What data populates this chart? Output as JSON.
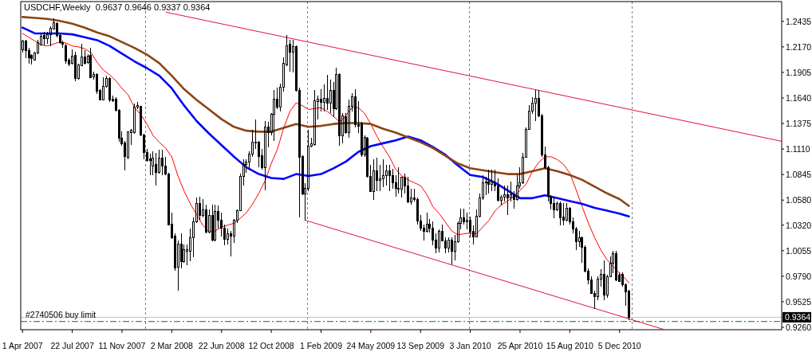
{
  "chart_data": {
    "type": "candlestick",
    "title": "USDCHF,Weekly  0.9637 0.9646 0.9337 0.9364",
    "x": [
      "2007-04-01",
      "2007-04-08",
      "2007-04-15",
      "2007-04-22",
      "2007-04-29",
      "2007-05-06",
      "2007-05-13",
      "2007-05-20",
      "2007-05-27",
      "2007-06-03",
      "2007-06-10",
      "2007-06-17",
      "2007-06-24",
      "2007-07-01",
      "2007-07-08",
      "2007-07-15",
      "2007-07-22",
      "2007-07-29",
      "2007-08-05",
      "2007-08-12",
      "2007-08-19",
      "2007-08-26",
      "2007-09-02",
      "2007-09-09",
      "2007-09-16",
      "2007-09-23",
      "2007-09-30",
      "2007-10-07",
      "2007-10-14",
      "2007-10-21",
      "2007-10-28",
      "2007-11-04",
      "2007-11-11",
      "2007-11-18",
      "2007-11-25",
      "2007-12-02",
      "2007-12-09",
      "2007-12-16",
      "2007-12-23",
      "2007-12-30",
      "2008-01-06",
      "2008-01-13",
      "2008-01-20",
      "2008-01-27",
      "2008-02-03",
      "2008-02-10",
      "2008-02-17",
      "2008-02-24",
      "2008-03-02",
      "2008-03-09",
      "2008-03-16",
      "2008-03-23",
      "2008-03-30",
      "2008-04-06",
      "2008-04-13",
      "2008-04-20",
      "2008-04-27",
      "2008-05-04",
      "2008-05-11",
      "2008-05-18",
      "2008-05-25",
      "2008-06-01",
      "2008-06-08",
      "2008-06-15",
      "2008-06-22",
      "2008-06-29",
      "2008-07-06",
      "2008-07-13",
      "2008-07-20",
      "2008-07-27",
      "2008-08-03",
      "2008-08-10",
      "2008-08-17",
      "2008-08-24",
      "2008-08-31",
      "2008-09-07",
      "2008-09-14",
      "2008-09-21",
      "2008-09-28",
      "2008-10-05",
      "2008-10-12",
      "2008-10-19",
      "2008-10-26",
      "2008-11-02",
      "2008-11-09",
      "2008-11-16",
      "2008-11-23",
      "2008-11-30",
      "2008-12-07",
      "2008-12-14",
      "2008-12-21",
      "2008-12-28",
      "2009-01-04",
      "2009-01-11",
      "2009-01-18",
      "2009-01-25",
      "2009-02-01",
      "2009-02-08",
      "2009-02-15",
      "2009-02-22",
      "2009-03-01",
      "2009-03-08",
      "2009-03-15",
      "2009-03-22",
      "2009-03-29",
      "2009-04-05",
      "2009-04-12",
      "2009-04-19",
      "2009-04-26",
      "2009-05-03",
      "2009-05-10",
      "2009-05-17",
      "2009-05-24",
      "2009-05-31",
      "2009-06-07",
      "2009-06-14",
      "2009-06-21",
      "2009-06-28",
      "2009-07-05",
      "2009-07-12",
      "2009-07-19",
      "2009-07-26",
      "2009-08-02",
      "2009-08-09",
      "2009-08-16",
      "2009-08-23",
      "2009-08-30",
      "2009-09-06",
      "2009-09-13",
      "2009-09-20",
      "2009-09-27",
      "2009-10-04",
      "2009-10-11",
      "2009-10-18",
      "2009-10-25",
      "2009-11-01",
      "2009-11-08",
      "2009-11-15",
      "2009-11-22",
      "2009-11-29",
      "2009-12-06",
      "2009-12-13",
      "2009-12-20",
      "2009-12-27",
      "2010-01-03",
      "2010-01-10",
      "2010-01-17",
      "2010-01-24",
      "2010-01-31",
      "2010-02-07",
      "2010-02-14",
      "2010-02-21",
      "2010-02-28",
      "2010-03-07",
      "2010-03-14",
      "2010-03-21",
      "2010-03-28",
      "2010-04-04",
      "2010-04-11",
      "2010-04-18",
      "2010-04-25",
      "2010-05-02",
      "2010-05-09",
      "2010-05-16",
      "2010-05-23",
      "2010-05-30",
      "2010-06-06",
      "2010-06-13",
      "2010-06-20",
      "2010-06-27",
      "2010-07-04",
      "2010-07-11",
      "2010-07-18",
      "2010-07-25",
      "2010-08-01",
      "2010-08-08",
      "2010-08-15",
      "2010-08-22",
      "2010-08-29",
      "2010-09-05",
      "2010-09-12",
      "2010-09-19",
      "2010-09-26",
      "2010-10-03",
      "2010-10-10",
      "2010-10-17",
      "2010-10-24",
      "2010-10-31",
      "2010-11-07",
      "2010-11-14",
      "2010-11-21",
      "2010-11-28",
      "2010-12-05",
      "2010-12-12",
      "2010-12-19",
      "2010-12-26"
    ],
    "ohlc": [
      [
        1.214,
        1.2244,
        1.2107,
        1.2231
      ],
      [
        1.2231,
        1.2244,
        1.2051,
        1.2129
      ],
      [
        1.2129,
        1.2162,
        1.1996,
        1.2057
      ],
      [
        1.2079,
        1.2093,
        1.1983,
        1.2046
      ],
      [
        1.2035,
        1.212,
        1.2029,
        1.2107
      ],
      [
        1.2107,
        1.2244,
        1.2093,
        1.2217
      ],
      [
        1.2189,
        1.2313,
        1.2184,
        1.2278
      ],
      [
        1.2286,
        1.2327,
        1.2189,
        1.2258
      ],
      [
        1.2253,
        1.2327,
        1.2203,
        1.23
      ],
      [
        1.2294,
        1.2382,
        1.2176,
        1.236
      ],
      [
        1.2355,
        1.2465,
        1.2349,
        1.2418
      ],
      [
        1.2415,
        1.2424,
        1.2272,
        1.2286
      ],
      [
        1.2286,
        1.23,
        1.2203,
        1.2211
      ],
      [
        1.2217,
        1.2231,
        1.2162,
        1.2195
      ],
      [
        1.2184,
        1.2203,
        1.1996,
        1.2024
      ],
      [
        1.2029,
        1.2051,
        1.1969,
        1.1991
      ],
      [
        1.1996,
        1.2148,
        1.1983,
        1.2074
      ],
      [
        1.2079,
        1.212,
        1.1817,
        1.1842
      ],
      [
        1.1842,
        1.1996,
        1.1831,
        1.1983
      ],
      [
        1.1977,
        1.2203,
        1.1969,
        1.2065
      ],
      [
        1.2065,
        1.2134,
        1.1983,
        1.1996
      ],
      [
        1.2007,
        1.2093,
        1.1996,
        1.2074
      ],
      [
        1.2079,
        1.2162,
        1.1845,
        1.1853
      ],
      [
        1.1856,
        1.1914,
        1.1831,
        1.1886
      ],
      [
        1.1886,
        1.19,
        1.1679,
        1.1712
      ],
      [
        1.1715,
        1.1734,
        1.1616,
        1.1619
      ],
      [
        1.1619,
        1.1858,
        1.1616,
        1.1762
      ],
      [
        1.1762,
        1.1872,
        1.1748,
        1.1845
      ],
      [
        1.1845,
        1.1858,
        1.1597,
        1.1619
      ],
      [
        1.163,
        1.1665,
        1.1597,
        1.161
      ],
      [
        1.1624,
        1.1652,
        1.15,
        1.1514
      ],
      [
        1.1514,
        1.1528,
        1.1183,
        1.1224
      ],
      [
        1.1224,
        1.1293,
        1.1147,
        1.1161
      ],
      [
        1.1169,
        1.1197,
        1.0888,
        1.1031
      ],
      [
        1.1026,
        1.1293,
        1.1004,
        1.1285
      ],
      [
        1.1279,
        1.1321,
        1.1155,
        1.1302
      ],
      [
        1.1279,
        1.1583,
        1.1266,
        1.1547
      ],
      [
        1.1541,
        1.1597,
        1.1528,
        1.1561
      ],
      [
        1.1555,
        1.1561,
        1.1246,
        1.1252
      ],
      [
        1.1252,
        1.1266,
        1.1004,
        1.1073
      ],
      [
        1.1073,
        1.1114,
        1.0976,
        1.099
      ],
      [
        1.1004,
        1.1059,
        1.0838,
        1.0993
      ],
      [
        1.0935,
        1.1087,
        1.0838,
        1.1012
      ],
      [
        1.0949,
        1.1073,
        1.0728,
        1.0871
      ],
      [
        1.0871,
        1.11,
        1.0852,
        1.1018
      ],
      [
        1.1018,
        1.11,
        1.0838,
        1.0935
      ],
      [
        1.0935,
        1.1031,
        1.0838,
        1.0852
      ],
      [
        1.0852,
        1.0866,
        1.0315,
        1.032
      ],
      [
        1.0328,
        1.0452,
        1.0177,
        1.019
      ],
      [
        1.0204,
        1.0232,
        0.9846,
        0.9873
      ],
      [
        0.9887,
        1.0163,
        0.9639,
        1.0122
      ],
      [
        1.0122,
        1.0232,
        0.9873,
        0.9942
      ],
      [
        0.9942,
        1.0122,
        0.9929,
        1.0066
      ],
      [
        1.0053,
        1.0122,
        0.9901,
        1.0066
      ],
      [
        1.0053,
        1.0287,
        0.9942,
        1.019
      ],
      [
        1.019,
        1.0397,
        0.9984,
        1.0356
      ],
      [
        1.0356,
        1.0604,
        1.0342,
        1.0549
      ],
      [
        1.0549,
        1.0618,
        1.037,
        1.0425
      ],
      [
        1.0425,
        1.059,
        1.0397,
        1.048
      ],
      [
        1.048,
        1.0535,
        1.0232,
        1.0246
      ],
      [
        1.0246,
        1.048,
        1.0232,
        1.0419
      ],
      [
        1.0419,
        1.0535,
        1.0149,
        1.0163
      ],
      [
        1.0163,
        1.0535,
        1.0149,
        1.0466
      ],
      [
        1.0466,
        1.0521,
        1.0287,
        1.037
      ],
      [
        1.037,
        1.0452,
        1.0204,
        1.0287
      ],
      [
        1.0287,
        1.0328,
        1.0108,
        1.0177
      ],
      [
        1.0177,
        1.0287,
        1.0122,
        1.0232
      ],
      [
        1.0232,
        1.0259,
        0.9998,
        1.0204
      ],
      [
        1.0204,
        1.0383,
        1.0135,
        1.037
      ],
      [
        1.037,
        1.048,
        1.0342,
        1.0474
      ],
      [
        1.0474,
        1.0852,
        1.0466,
        1.0825
      ],
      [
        1.0825,
        1.1004,
        1.0728,
        1.0949
      ],
      [
        1.0949,
        1.1004,
        1.0866,
        1.0971
      ],
      [
        1.0971,
        1.1087,
        1.0894,
        1.1059
      ],
      [
        1.1059,
        1.1307,
        1.1031,
        1.1183
      ],
      [
        1.1169,
        1.1418,
        1.1114,
        1.1183
      ],
      [
        1.1178,
        1.1197,
        1.0921,
        1.1031
      ],
      [
        1.1037,
        1.1114,
        1.0894,
        1.0916
      ],
      [
        1.0916,
        1.1404,
        1.0678,
        1.134
      ],
      [
        1.134,
        1.139,
        1.1128,
        1.1279
      ],
      [
        1.1279,
        1.1486,
        1.1252,
        1.1473
      ],
      [
        1.1473,
        1.1721,
        1.1191,
        1.1624
      ],
      [
        1.1624,
        1.1748,
        1.1528,
        1.1541
      ],
      [
        1.1541,
        1.179,
        1.15,
        1.1748
      ],
      [
        1.1748,
        1.2065,
        1.1707,
        1.1996
      ],
      [
        1.1983,
        1.2294,
        1.1969,
        1.2184
      ],
      [
        1.2195,
        1.2244,
        1.1914,
        1.2112
      ],
      [
        1.2112,
        1.2244,
        1.1908,
        1.2176
      ],
      [
        1.2176,
        1.2189,
        1.1707,
        1.1721
      ],
      [
        1.1721,
        1.1748,
        1.0403,
        1.1026
      ],
      [
        1.1031,
        1.1045,
        1.0632,
        1.0645
      ],
      [
        1.0645,
        1.0756,
        1.0364,
        1.0706
      ],
      [
        1.07,
        1.1307,
        1.0673,
        1.1136
      ],
      [
        1.1136,
        1.1224,
        1.1128,
        1.1161
      ],
      [
        1.1155,
        1.1721,
        1.1142,
        1.161
      ],
      [
        1.1605,
        1.1665,
        1.1418,
        1.1624
      ],
      [
        1.1624,
        1.1734,
        1.15,
        1.1597
      ],
      [
        1.1597,
        1.1781,
        1.15,
        1.1632
      ],
      [
        1.1632,
        1.1881,
        1.1514,
        1.1588
      ],
      [
        1.1588,
        1.1831,
        1.1486,
        1.1721
      ],
      [
        1.1721,
        1.1803,
        1.1445,
        1.1528
      ],
      [
        1.1528,
        1.1955,
        1.1514,
        1.1886
      ],
      [
        1.1886,
        1.19,
        1.1147,
        1.1246
      ],
      [
        1.1246,
        1.1486,
        1.1169,
        1.145
      ],
      [
        1.1445,
        1.1486,
        1.1266,
        1.1279
      ],
      [
        1.1279,
        1.1624,
        1.1224,
        1.1555
      ],
      [
        1.1555,
        1.1693,
        1.15,
        1.1652
      ],
      [
        1.1652,
        1.1734,
        1.1335,
        1.1362
      ],
      [
        1.1362,
        1.161,
        1.1279,
        1.1348
      ],
      [
        1.1368,
        1.139,
        1.1026,
        1.1045
      ],
      [
        1.1045,
        1.1252,
        1.1031,
        1.123
      ],
      [
        1.1224,
        1.1238,
        1.0811,
        1.0825
      ],
      [
        1.0825,
        1.0949,
        1.0667,
        1.0673
      ],
      [
        1.0673,
        1.1004,
        1.0585,
        1.0885
      ],
      [
        1.0885,
        1.1018,
        1.0673,
        1.0783
      ],
      [
        1.0783,
        1.0949,
        1.0673,
        1.0805
      ],
      [
        1.0805,
        1.1004,
        1.0714,
        1.0838
      ],
      [
        1.0838,
        1.0949,
        1.0728,
        1.088
      ],
      [
        1.088,
        1.0949,
        1.0673,
        1.0833
      ],
      [
        1.0833,
        1.0907,
        1.0701,
        1.0756
      ],
      [
        1.0756,
        1.0838,
        1.0618,
        1.0701
      ],
      [
        1.0701,
        1.0921,
        1.0645,
        1.0695
      ],
      [
        1.0695,
        1.0825,
        1.0604,
        1.0816
      ],
      [
        1.0816,
        1.0852,
        1.0645,
        1.0728
      ],
      [
        1.0728,
        1.0825,
        1.0549,
        1.0563
      ],
      [
        1.0563,
        1.0701,
        1.0535,
        1.0604
      ],
      [
        1.0604,
        1.0701,
        1.0563,
        1.0585
      ],
      [
        1.059,
        1.0604,
        1.0328,
        1.0364
      ],
      [
        1.0364,
        1.0425,
        1.0259,
        1.0292
      ],
      [
        1.0292,
        1.0328,
        1.0163,
        1.0254
      ],
      [
        1.0254,
        1.0452,
        1.0246,
        1.0328
      ],
      [
        1.0328,
        1.0383,
        1.0246,
        1.0292
      ],
      [
        1.0292,
        1.0356,
        1.0108,
        1.0163
      ],
      [
        1.0163,
        1.0232,
        1.0025,
        1.008
      ],
      [
        1.008,
        1.0273,
        1.0039,
        1.0259
      ],
      [
        1.0259,
        1.0328,
        1.0149,
        1.0157
      ],
      [
        1.0157,
        1.019,
        1.0025,
        1.008
      ],
      [
        1.008,
        1.019,
        1.0039,
        1.0163
      ],
      [
        1.0163,
        1.019,
        0.9909,
        1.0053
      ],
      [
        1.0053,
        1.0218,
        0.9951,
        1.0149
      ],
      [
        1.0149,
        1.0356,
        1.0135,
        1.0342
      ],
      [
        1.0342,
        1.0494,
        1.0273,
        1.0397
      ],
      [
        1.0397,
        1.0494,
        1.0328,
        1.0356
      ],
      [
        1.0356,
        1.0452,
        1.0273,
        1.037
      ],
      [
        1.037,
        1.0411,
        1.019,
        1.0254
      ],
      [
        1.0254,
        1.0315,
        1.0122,
        1.0199
      ],
      [
        1.0199,
        1.048,
        1.019,
        1.0411
      ],
      [
        1.0411,
        1.0645,
        1.0397,
        1.0604
      ],
      [
        1.0604,
        1.0838,
        1.0585,
        1.0756
      ],
      [
        1.0756,
        1.0825,
        1.0632,
        1.0769
      ],
      [
        1.0769,
        1.0894,
        1.0645,
        1.0742
      ],
      [
        1.0742,
        1.0894,
        1.0673,
        1.0769
      ],
      [
        1.0756,
        1.0894,
        1.0673,
        1.0728
      ],
      [
        1.0728,
        1.0805,
        1.0563,
        1.0576
      ],
      [
        1.0576,
        1.0632,
        1.0521,
        1.0612
      ],
      [
        1.0612,
        1.0728,
        1.0563,
        1.0632
      ],
      [
        1.0632,
        1.0728,
        1.0425,
        1.0604
      ],
      [
        1.0604,
        1.0769,
        1.0563,
        1.0632
      ],
      [
        1.0632,
        1.0673,
        1.0494,
        1.0585
      ],
      [
        1.0585,
        1.0838,
        1.0576,
        1.0728
      ],
      [
        1.0728,
        1.0921,
        1.0701,
        1.0761
      ],
      [
        1.0761,
        1.1073,
        1.075,
        1.1026
      ],
      [
        1.1026,
        1.1335,
        1.1018,
        1.1315
      ],
      [
        1.1315,
        1.1569,
        1.1307,
        1.1506
      ],
      [
        1.1506,
        1.1652,
        1.1473,
        1.1583
      ],
      [
        1.1583,
        1.1721,
        1.1404,
        1.1632
      ],
      [
        1.1632,
        1.1721,
        1.1445,
        1.145
      ],
      [
        1.145,
        1.1473,
        1.1031,
        1.1045
      ],
      [
        1.1045,
        1.1136,
        1.0907,
        1.0916
      ],
      [
        1.0916,
        1.0935,
        1.0563,
        1.0618
      ],
      [
        1.0618,
        1.0632,
        1.048,
        1.0549
      ],
      [
        1.0549,
        1.0618,
        1.0392,
        1.048
      ],
      [
        1.048,
        1.0563,
        1.047,
        1.0541
      ],
      [
        1.0541,
        1.0563,
        1.0315,
        1.0397
      ],
      [
        1.0403,
        1.0549,
        1.0315,
        1.037
      ],
      [
        1.037,
        1.0549,
        1.0356,
        1.0494
      ],
      [
        1.0494,
        1.0508,
        1.0328,
        1.0356
      ],
      [
        1.0356,
        1.0397,
        1.0232,
        1.0281
      ],
      [
        1.0281,
        1.0301,
        1.0061,
        1.0149
      ],
      [
        1.0149,
        1.0259,
        1.0094,
        1.019
      ],
      [
        1.019,
        1.0204,
        0.9929,
        1.0094
      ],
      [
        1.0094,
        1.0108,
        0.9832,
        0.984
      ],
      [
        0.984,
        0.9868,
        0.9708,
        0.975
      ],
      [
        0.975,
        0.9791,
        0.9606,
        0.9612
      ],
      [
        0.9612,
        0.9639,
        0.9454,
        0.9576
      ],
      [
        0.9576,
        0.9791,
        0.9543,
        0.9763
      ],
      [
        0.9763,
        0.986,
        0.9681,
        0.981
      ],
      [
        0.981,
        0.9956,
        0.9537,
        0.9592
      ],
      [
        0.9592,
        0.9805,
        0.9565,
        0.9785
      ],
      [
        0.9785,
        0.9998,
        0.9777,
        0.9929
      ],
      [
        0.9929,
        1.0053,
        0.9818,
        1.0025
      ],
      [
        1.0025,
        1.0053,
        0.9736,
        0.975
      ],
      [
        0.9805,
        0.9832,
        0.973,
        0.9736
      ],
      [
        0.981,
        0.9832,
        0.9684,
        0.9703
      ],
      [
        0.9703,
        0.9714,
        0.9487,
        0.9625
      ],
      [
        0.9637,
        0.9646,
        0.9337,
        0.9364
      ]
    ],
    "series": [
      {
        "type": "line",
        "color": "#ff0000",
        "x": [
          "2007-04-01",
          "2007-04-15",
          "2007-04-29",
          "2007-05-13",
          "2007-05-27",
          "2007-06-10",
          "2007-06-24",
          "2007-07-08",
          "2007-07-22",
          "2007-08-05",
          "2007-08-19",
          "2007-09-02",
          "2007-09-16",
          "2007-09-30",
          "2007-10-14",
          "2007-10-28",
          "2007-11-11",
          "2007-11-25",
          "2007-12-09",
          "2007-12-23",
          "2008-01-06",
          "2008-01-20",
          "2008-02-03",
          "2008-02-17",
          "2008-03-02",
          "2008-03-16",
          "2008-03-30",
          "2008-04-13",
          "2008-04-27",
          "2008-05-11",
          "2008-05-25",
          "2008-06-08",
          "2008-06-22",
          "2008-07-06",
          "2008-07-20",
          "2008-08-03",
          "2008-08-17",
          "2008-08-31",
          "2008-09-14",
          "2008-09-28",
          "2008-10-12",
          "2008-10-26",
          "2008-11-09",
          "2008-11-23",
          "2008-12-07",
          "2008-12-21",
          "2009-01-04",
          "2009-01-18",
          "2009-02-01",
          "2009-02-15",
          "2009-03-01",
          "2009-03-15",
          "2009-03-29",
          "2009-04-12",
          "2009-04-26",
          "2009-05-10",
          "2009-05-24",
          "2009-06-07",
          "2009-06-21",
          "2009-07-05",
          "2009-07-19",
          "2009-08-02",
          "2009-08-16",
          "2009-08-30",
          "2009-09-13",
          "2009-09-27",
          "2009-10-11",
          "2009-10-25",
          "2009-11-08",
          "2009-11-22",
          "2009-12-06",
          "2009-12-20",
          "2010-01-03",
          "2010-01-17",
          "2010-01-31",
          "2010-02-14",
          "2010-02-28",
          "2010-03-14",
          "2010-03-28",
          "2010-04-11",
          "2010-04-25",
          "2010-05-09",
          "2010-05-23",
          "2010-06-06",
          "2010-06-20",
          "2010-07-04",
          "2010-07-18",
          "2010-08-01",
          "2010-08-15",
          "2010-08-29",
          "2010-09-12",
          "2010-09-26",
          "2010-10-10",
          "2010-10-24",
          "2010-11-07",
          "2010-11-21",
          "2010-12-05",
          "2010-12-19",
          "2010-12-26"
        ],
        "values": [
          1.231,
          1.227,
          1.223,
          1.219,
          1.218,
          1.22,
          1.222,
          1.221,
          1.218,
          1.217,
          1.215,
          1.211,
          1.201,
          1.193,
          1.188,
          1.182,
          1.174,
          1.167,
          1.154,
          1.147,
          1.137,
          1.125,
          1.118,
          1.112,
          1.103,
          1.083,
          1.067,
          1.054,
          1.043,
          1.032,
          1.025,
          1.026,
          1.03,
          1.032,
          1.034,
          1.039,
          1.045,
          1.054,
          1.065,
          1.078,
          1.096,
          1.111,
          1.133,
          1.15,
          1.159,
          1.156,
          1.152,
          1.153,
          1.154,
          1.15,
          1.145,
          1.139,
          1.146,
          1.154,
          1.154,
          1.148,
          1.137,
          1.124,
          1.113,
          1.103,
          1.09,
          1.083,
          1.079,
          1.076,
          1.073,
          1.064,
          1.051,
          1.044,
          1.035,
          1.026,
          1.022,
          1.023,
          1.024,
          1.023,
          1.03,
          1.037,
          1.047,
          1.053,
          1.057,
          1.062,
          1.068,
          1.075,
          1.088,
          1.097,
          1.103,
          1.103,
          1.1,
          1.095,
          1.086,
          1.069,
          1.051,
          1.034,
          1.019,
          1.006,
          0.996,
          0.989,
          0.982,
          0.976,
          0.972
        ]
      },
      {
        "type": "line",
        "color": "#0000ff",
        "x": [
          "2007-04-01",
          "2007-04-29",
          "2007-05-27",
          "2007-06-24",
          "2007-07-22",
          "2007-08-19",
          "2007-09-16",
          "2007-10-14",
          "2007-11-11",
          "2007-12-09",
          "2008-01-06",
          "2008-02-03",
          "2008-03-02",
          "2008-03-30",
          "2008-04-27",
          "2008-05-25",
          "2008-06-22",
          "2008-07-20",
          "2008-08-17",
          "2008-09-14",
          "2008-10-12",
          "2008-11-09",
          "2008-12-07",
          "2009-01-04",
          "2009-02-01",
          "2009-03-01",
          "2009-03-29",
          "2009-04-26",
          "2009-05-24",
          "2009-06-21",
          "2009-07-19",
          "2009-08-16",
          "2009-09-13",
          "2009-10-11",
          "2009-11-08",
          "2009-12-06",
          "2010-01-03",
          "2010-01-31",
          "2010-02-28",
          "2010-03-28",
          "2010-04-25",
          "2010-05-23",
          "2010-06-20",
          "2010-07-18",
          "2010-08-15",
          "2010-09-12",
          "2010-10-10",
          "2010-11-07",
          "2010-12-05",
          "2010-12-26"
        ],
        "values": [
          1.237,
          1.231,
          1.231,
          1.231,
          1.23,
          1.227,
          1.224,
          1.218,
          1.21,
          1.202,
          1.195,
          1.187,
          1.174,
          1.156,
          1.14,
          1.127,
          1.115,
          1.103,
          1.092,
          1.085,
          1.081,
          1.08,
          1.085,
          1.083,
          1.085,
          1.091,
          1.098,
          1.108,
          1.114,
          1.117,
          1.12,
          1.124,
          1.12,
          1.113,
          1.105,
          1.094,
          1.084,
          1.082,
          1.076,
          1.068,
          1.06,
          1.06,
          1.063,
          1.06,
          1.057,
          1.054,
          1.05,
          1.047,
          1.044,
          1.041
        ]
      },
      {
        "type": "line",
        "color": "#8b4513",
        "x": [
          "2007-04-01",
          "2007-04-29",
          "2007-05-27",
          "2007-06-24",
          "2007-07-22",
          "2007-08-19",
          "2007-09-16",
          "2007-10-14",
          "2007-11-11",
          "2007-12-09",
          "2008-01-06",
          "2008-02-03",
          "2008-03-02",
          "2008-03-30",
          "2008-04-27",
          "2008-05-25",
          "2008-06-22",
          "2008-07-20",
          "2008-08-17",
          "2008-09-14",
          "2008-10-12",
          "2008-11-09",
          "2008-12-07",
          "2009-01-04",
          "2009-02-01",
          "2009-03-01",
          "2009-03-29",
          "2009-04-26",
          "2009-05-24",
          "2009-06-21",
          "2009-07-19",
          "2009-08-16",
          "2009-09-13",
          "2009-10-11",
          "2009-11-08",
          "2009-12-06",
          "2010-01-03",
          "2010-01-31",
          "2010-02-28",
          "2010-03-28",
          "2010-04-25",
          "2010-05-23",
          "2010-06-20",
          "2010-07-18",
          "2010-08-15",
          "2010-09-12",
          "2010-10-10",
          "2010-11-07",
          "2010-12-05",
          "2010-12-26"
        ],
        "values": [
          1.248,
          1.247,
          1.246,
          1.244,
          1.241,
          1.237,
          1.232,
          1.228,
          1.222,
          1.216,
          1.209,
          1.2,
          1.187,
          1.173,
          1.162,
          1.152,
          1.142,
          1.134,
          1.13,
          1.129,
          1.129,
          1.133,
          1.137,
          1.134,
          1.135,
          1.137,
          1.138,
          1.138,
          1.137,
          1.132,
          1.128,
          1.123,
          1.118,
          1.112,
          1.104,
          1.096,
          1.091,
          1.089,
          1.087,
          1.085,
          1.085,
          1.088,
          1.091,
          1.088,
          1.084,
          1.079,
          1.072,
          1.065,
          1.059,
          1.052
        ]
      },
      {
        "type": "line",
        "color": "#dc143c",
        "x": [
          "2008-02-18",
          "2011-12-05"
        ],
        "values": [
          1.253,
          1.119
        ]
      },
      {
        "type": "line",
        "color": "#dc143c",
        "x": [
          "2008-12-28",
          "2011-03-13"
        ],
        "values": [
          1.037,
          0.924
        ]
      }
    ],
    "xlim": [
      "2007-03-28",
      "2011-12-05"
    ],
    "xticks": [
      {
        "value": "2007-04-01",
        "label": "1 Apr 2007"
      },
      {
        "value": "2007-07-22",
        "label": "22 Jul 2007"
      },
      {
        "value": "2007-11-11",
        "label": "11 Nov 2007"
      },
      {
        "value": "2008-03-02",
        "label": "2 Mar 2008"
      },
      {
        "value": "2008-06-22",
        "label": "22 Jun 2008"
      },
      {
        "value": "2008-10-12",
        "label": "12 Oct 2008"
      },
      {
        "value": "2009-02-01",
        "label": "1 Feb 2009"
      },
      {
        "value": "2009-05-24",
        "label": "24 May 2009"
      },
      {
        "value": "2009-09-13",
        "label": "13 Sep 2009"
      },
      {
        "value": "2010-01-03",
        "label": "3 Jan 2010"
      },
      {
        "value": "2010-04-25",
        "label": "25 Apr 2010"
      },
      {
        "value": "2010-08-15",
        "label": "15 Aug 2010"
      },
      {
        "value": "2010-12-05",
        "label": "5 Dec 2010"
      }
    ],
    "ylim": [
      0.9235,
      1.264
    ],
    "yticks": [
      1.2435,
      {
        "value": 1.217,
        "label": "1.2170"
      },
      1.1905,
      {
        "value": 1.164,
        "label": "1.1640"
      },
      1.1375,
      {
        "value": 1.111,
        "label": "1.1110"
      },
      1.0845,
      {
        "value": 1.058,
        "label": "1.0580"
      },
      {
        "value": 1.032,
        "label": "1.0320"
      },
      1.0055,
      {
        "value": 0.979,
        "label": "0.9790"
      },
      0.9525,
      {
        "value": 0.926,
        "label": "0.9260"
      }
    ],
    "ref_lines": [
      {
        "axis": "x",
        "value": "2008-01-02T12:00",
        "color": "#808080",
        "line_style": "dotted"
      },
      {
        "axis": "x",
        "value": "2009-01-01T12:00",
        "color": "#808080",
        "line_style": "dotted"
      },
      {
        "axis": "x",
        "value": "2009-12-31T12:00",
        "color": "#808080",
        "line_style": "dotted"
      },
      {
        "axis": "x",
        "value": "2011-01-02",
        "color": "#808080",
        "line_style": "dotted"
      },
      {
        "axis": "y",
        "value": 0.9364,
        "label": "0.9364",
        "color": "#c0c0c0"
      },
      {
        "axis": "y",
        "value": 0.932,
        "label": "#2740506 buy limit",
        "color": "#008000",
        "line_style": "dashed"
      }
    ]
  }
}
